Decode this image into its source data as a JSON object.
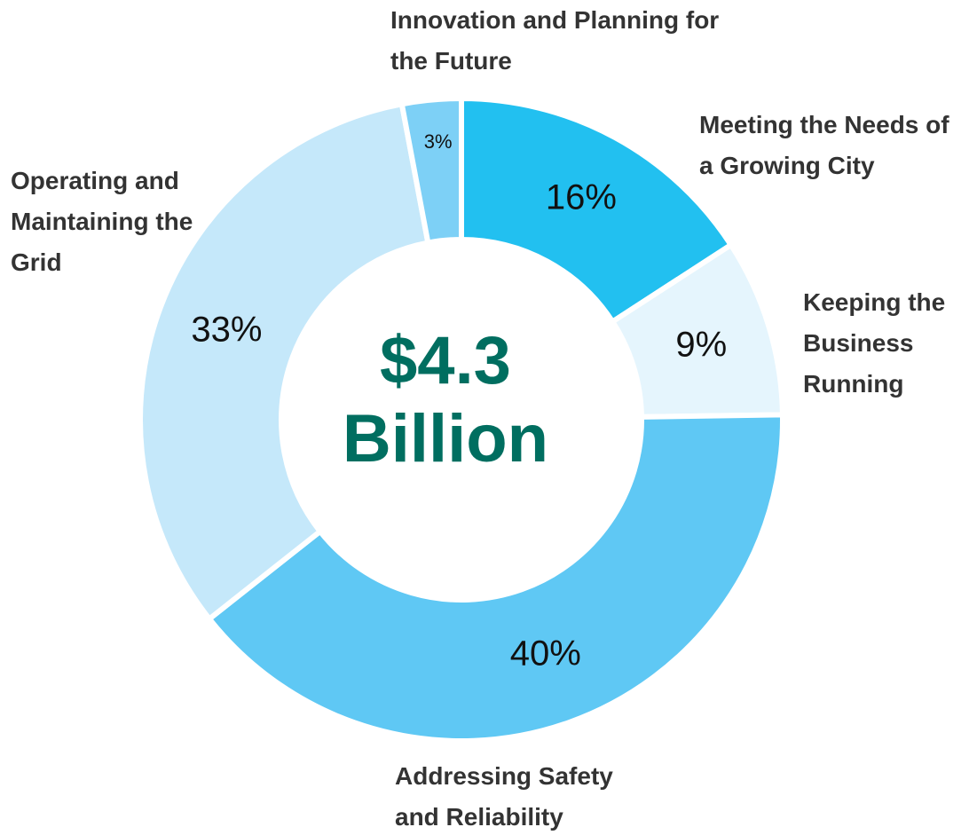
{
  "chart_data": {
    "type": "donut",
    "categories": [
      "Meeting the Needs of a Growing City",
      "Keeping the Business Running",
      "Addressing Safety and Reliability",
      "Operating and Maintaining the Grid",
      "Innovation and Planning for the Future"
    ],
    "values": [
      16,
      9,
      40,
      33,
      3
    ],
    "value_labels": [
      "16%",
      "9%",
      "40%",
      "33%",
      "3%"
    ],
    "colors": [
      "#22c0f0",
      "#e5f5fd",
      "#5fc8f4",
      "#c5e8fa",
      "#7dd0f6"
    ],
    "center_label": [
      "$4.3",
      "Billion"
    ]
  }
}
